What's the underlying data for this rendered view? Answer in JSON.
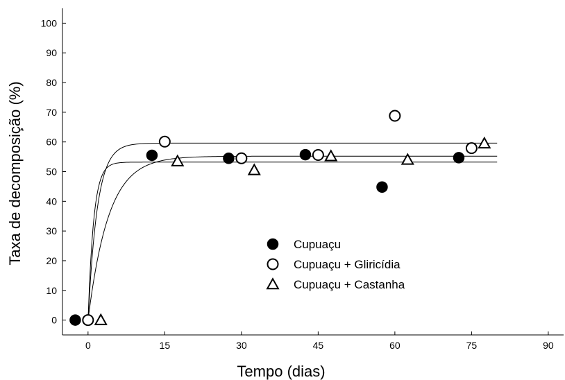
{
  "chart_data": {
    "type": "scatter",
    "title": "",
    "xlabel": "Tempo (dias)",
    "ylabel": "Taxa de decomposição (%)",
    "xlim": [
      -5,
      93
    ],
    "ylim": [
      -5,
      105
    ],
    "xticks": [
      0,
      15,
      30,
      45,
      60,
      75,
      90
    ],
    "yticks": [
      0,
      10,
      20,
      30,
      40,
      50,
      60,
      70,
      80,
      90,
      100
    ],
    "grid": false,
    "legend_position": "center",
    "series": [
      {
        "name": "Cupuaçu",
        "marker": "filled-circle",
        "x": [
          -2.5,
          12.5,
          27.5,
          42.5,
          57.5,
          72.5
        ],
        "y": [
          0,
          55.5,
          54.5,
          55.7,
          44.8,
          54.7
        ],
        "fit_plateau": 53.2,
        "fit_rate": 0.9
      },
      {
        "name": "Cupuaçu + Gliricídia",
        "marker": "open-circle",
        "x": [
          0,
          15,
          30,
          45,
          60,
          75
        ],
        "y": [
          0,
          60.1,
          54.5,
          55.6,
          68.8,
          57.9
        ],
        "fit_plateau": 59.6,
        "fit_rate": 0.55
      },
      {
        "name": "Cupuaçu + Castanha",
        "marker": "open-triangle",
        "x": [
          2.5,
          17.5,
          32.5,
          47.5,
          62.5,
          77.5
        ],
        "y": [
          0,
          53.5,
          50.5,
          55.2,
          54.0,
          59.5
        ],
        "fit_plateau": 55.2,
        "fit_rate": 0.25
      }
    ]
  }
}
